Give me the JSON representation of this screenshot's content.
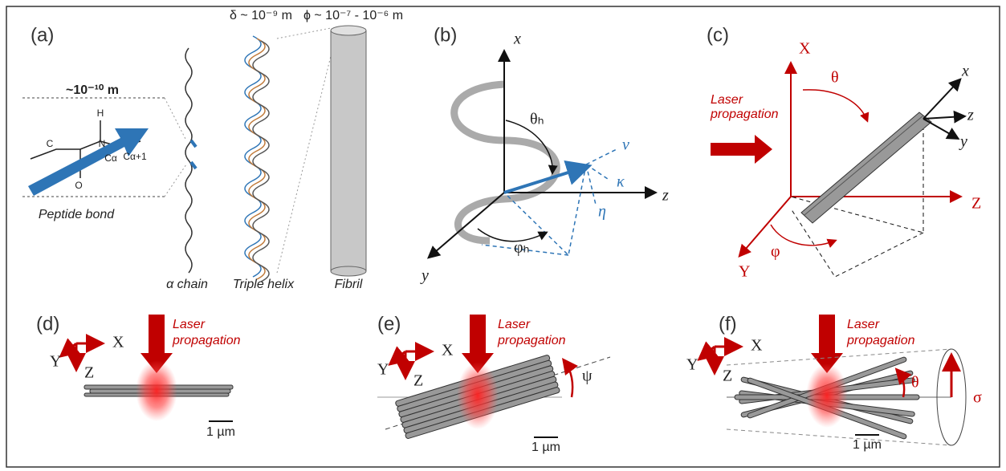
{
  "panels": {
    "a": {
      "label": "(a)",
      "bond_length": "~10⁻¹⁰ m",
      "helix_size": "δ ~ 10⁻⁹ m",
      "fibril_size": "ϕ ~ 10⁻⁷ - 10⁻⁶ m",
      "atoms": [
        "H",
        "C",
        "N",
        "O",
        "Cα",
        "Cα+1"
      ],
      "peptide": "Peptide bond",
      "chain": "α chain",
      "triple": "Triple helix",
      "fibril": "Fibril"
    },
    "b": {
      "label": "(b)",
      "axes": [
        "x",
        "y",
        "z"
      ],
      "theta": "θₕ",
      "phi": "φₕ",
      "vectors": [
        "v",
        "κ",
        "η"
      ]
    },
    "c": {
      "label": "(c)",
      "laser": [
        "Laser",
        "propagation"
      ],
      "axes": [
        "X",
        "Z",
        "Y"
      ],
      "theta": "θ",
      "phi": "φ",
      "local_axes": [
        "x",
        "z",
        "y"
      ]
    },
    "d": {
      "label": "(d)",
      "axes": [
        "X",
        "Y",
        "Z"
      ],
      "laser": [
        "Laser",
        "propagation"
      ],
      "scale": "1 µm"
    },
    "e": {
      "label": "(e)",
      "axes": [
        "X",
        "Y",
        "Z"
      ],
      "laser": [
        "Laser",
        "propagation"
      ],
      "psi": "ψ",
      "scale": "1 µm"
    },
    "f": {
      "label": "(f)",
      "axes": [
        "X",
        "Y",
        "Z"
      ],
      "laser": [
        "Laser",
        "propagation"
      ],
      "theta": "θ",
      "sigma": "σ",
      "scale": "1 µm"
    }
  }
}
